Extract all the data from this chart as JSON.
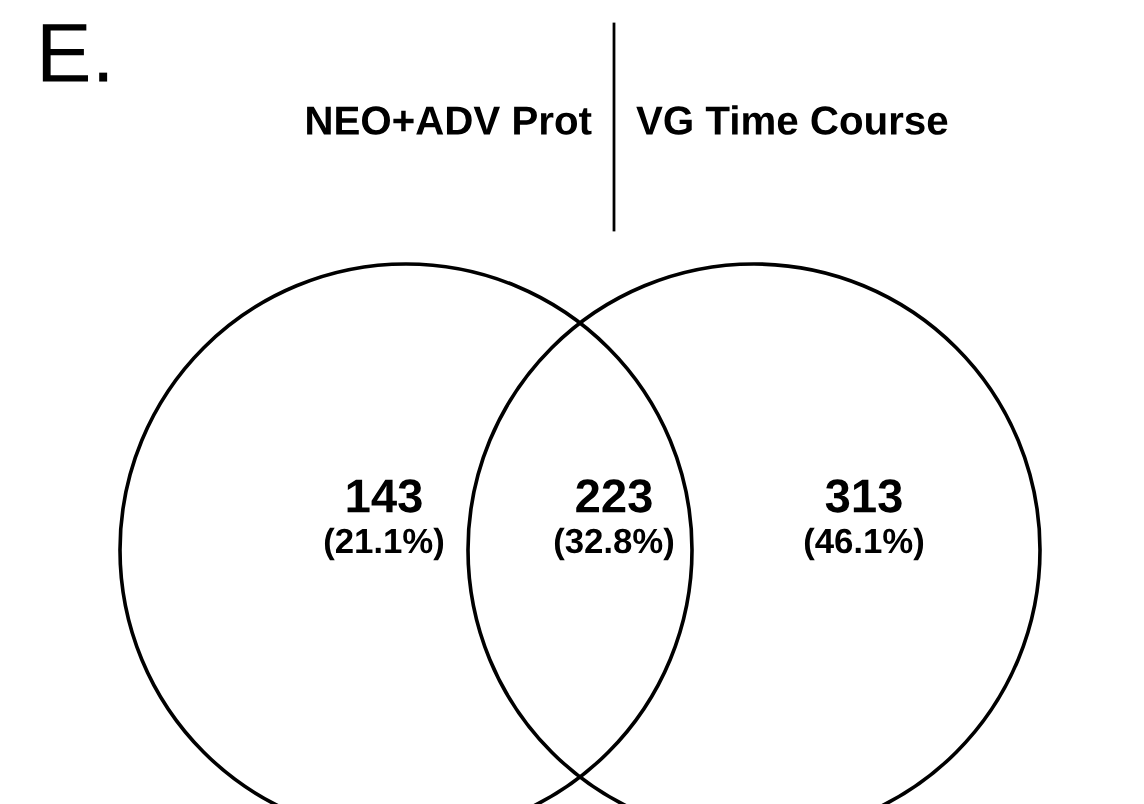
{
  "chart_data": {
    "type": "other",
    "title": "E.",
    "annotations": [
      "NEO+ADV Prot",
      "VG Time Course",
      "(21.1%)",
      "(32.8%)",
      "(46.1%)"
    ],
    "categories": [
      null,
      null,
      null
    ],
    "values": [
      143,
      223,
      313
    ],
    "data_labels": true
  }
}
